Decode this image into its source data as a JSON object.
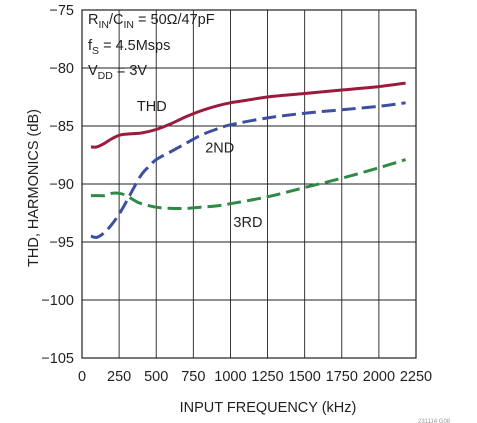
{
  "chart_data": {
    "type": "line",
    "xlabel": "INPUT FREQUENCY (kHz)",
    "ylabel": "THD, HARMONICS (dB)",
    "xlim": [
      0,
      2250
    ],
    "ylim": [
      -105,
      -75
    ],
    "x_ticks": [
      0,
      250,
      500,
      750,
      1000,
      1250,
      1500,
      1750,
      2000,
      2250
    ],
    "y_ticks": [
      -75,
      -80,
      -85,
      -90,
      -95,
      -100,
      -105
    ],
    "x_tick_labels": [
      "0",
      "250",
      "500",
      "750",
      "1000",
      "1250",
      "1500",
      "1750",
      "2000",
      "2250"
    ],
    "y_tick_labels": [
      "−75",
      "−80",
      "−85",
      "−90",
      "−95",
      "−100",
      "−105"
    ],
    "grid": true,
    "conditions": {
      "line1": {
        "r": "R",
        "r_sub": "IN",
        "c": "/C",
        "c_sub": "IN",
        "rest": " = 50Ω/47pF"
      },
      "line2": {
        "f": "f",
        "f_sub": "S",
        "rest": " = 4.5Msps"
      },
      "line3": {
        "v": "V",
        "v_sub": "DD",
        "rest": " = 3V"
      }
    },
    "series": [
      {
        "name": "THD",
        "color": "#9b1b3c",
        "dash": "solid",
        "x": [
          60,
          100,
          150,
          200,
          250,
          300,
          400,
          500,
          600,
          700,
          800,
          900,
          1000,
          1100,
          1250,
          1500,
          1750,
          2000,
          2180
        ],
        "y": [
          -86.8,
          -86.8,
          -86.5,
          -86.1,
          -85.8,
          -85.7,
          -85.6,
          -85.3,
          -84.8,
          -84.2,
          -83.7,
          -83.3,
          -83.0,
          -82.8,
          -82.5,
          -82.2,
          -81.9,
          -81.6,
          -81.3
        ]
      },
      {
        "name": "2ND",
        "color": "#3d4fa0",
        "dash": "dashed",
        "x": [
          60,
          100,
          150,
          200,
          250,
          300,
          350,
          400,
          450,
          500,
          600,
          700,
          800,
          900,
          1000,
          1250,
          1500,
          1750,
          2000,
          2180
        ],
        "y": [
          -94.5,
          -94.6,
          -94.2,
          -93.5,
          -92.6,
          -91.5,
          -90.3,
          -89.2,
          -88.5,
          -87.9,
          -87.2,
          -86.5,
          -85.8,
          -85.3,
          -84.9,
          -84.3,
          -83.9,
          -83.6,
          -83.3,
          -83.0
        ]
      },
      {
        "name": "3RD",
        "color": "#2e8b45",
        "dash": "dashed",
        "x": [
          60,
          100,
          150,
          200,
          250,
          300,
          350,
          400,
          500,
          600,
          700,
          800,
          900,
          1000,
          1250,
          1500,
          1750,
          2000,
          2180
        ],
        "y": [
          -91.0,
          -91.0,
          -91.0,
          -90.8,
          -90.8,
          -91.0,
          -91.4,
          -91.7,
          -92.0,
          -92.1,
          -92.1,
          -92.0,
          -91.9,
          -91.7,
          -91.1,
          -90.3,
          -89.5,
          -88.6,
          -87.9
        ]
      }
    ],
    "annotations": [
      {
        "text": "THD",
        "x": 370,
        "y": -83.7
      },
      {
        "text": "2ND",
        "x": 830,
        "y": -87.3
      },
      {
        "text": "3RD",
        "x": 1020,
        "y": -93.7
      }
    ]
  },
  "figure_id": "231114 G08"
}
